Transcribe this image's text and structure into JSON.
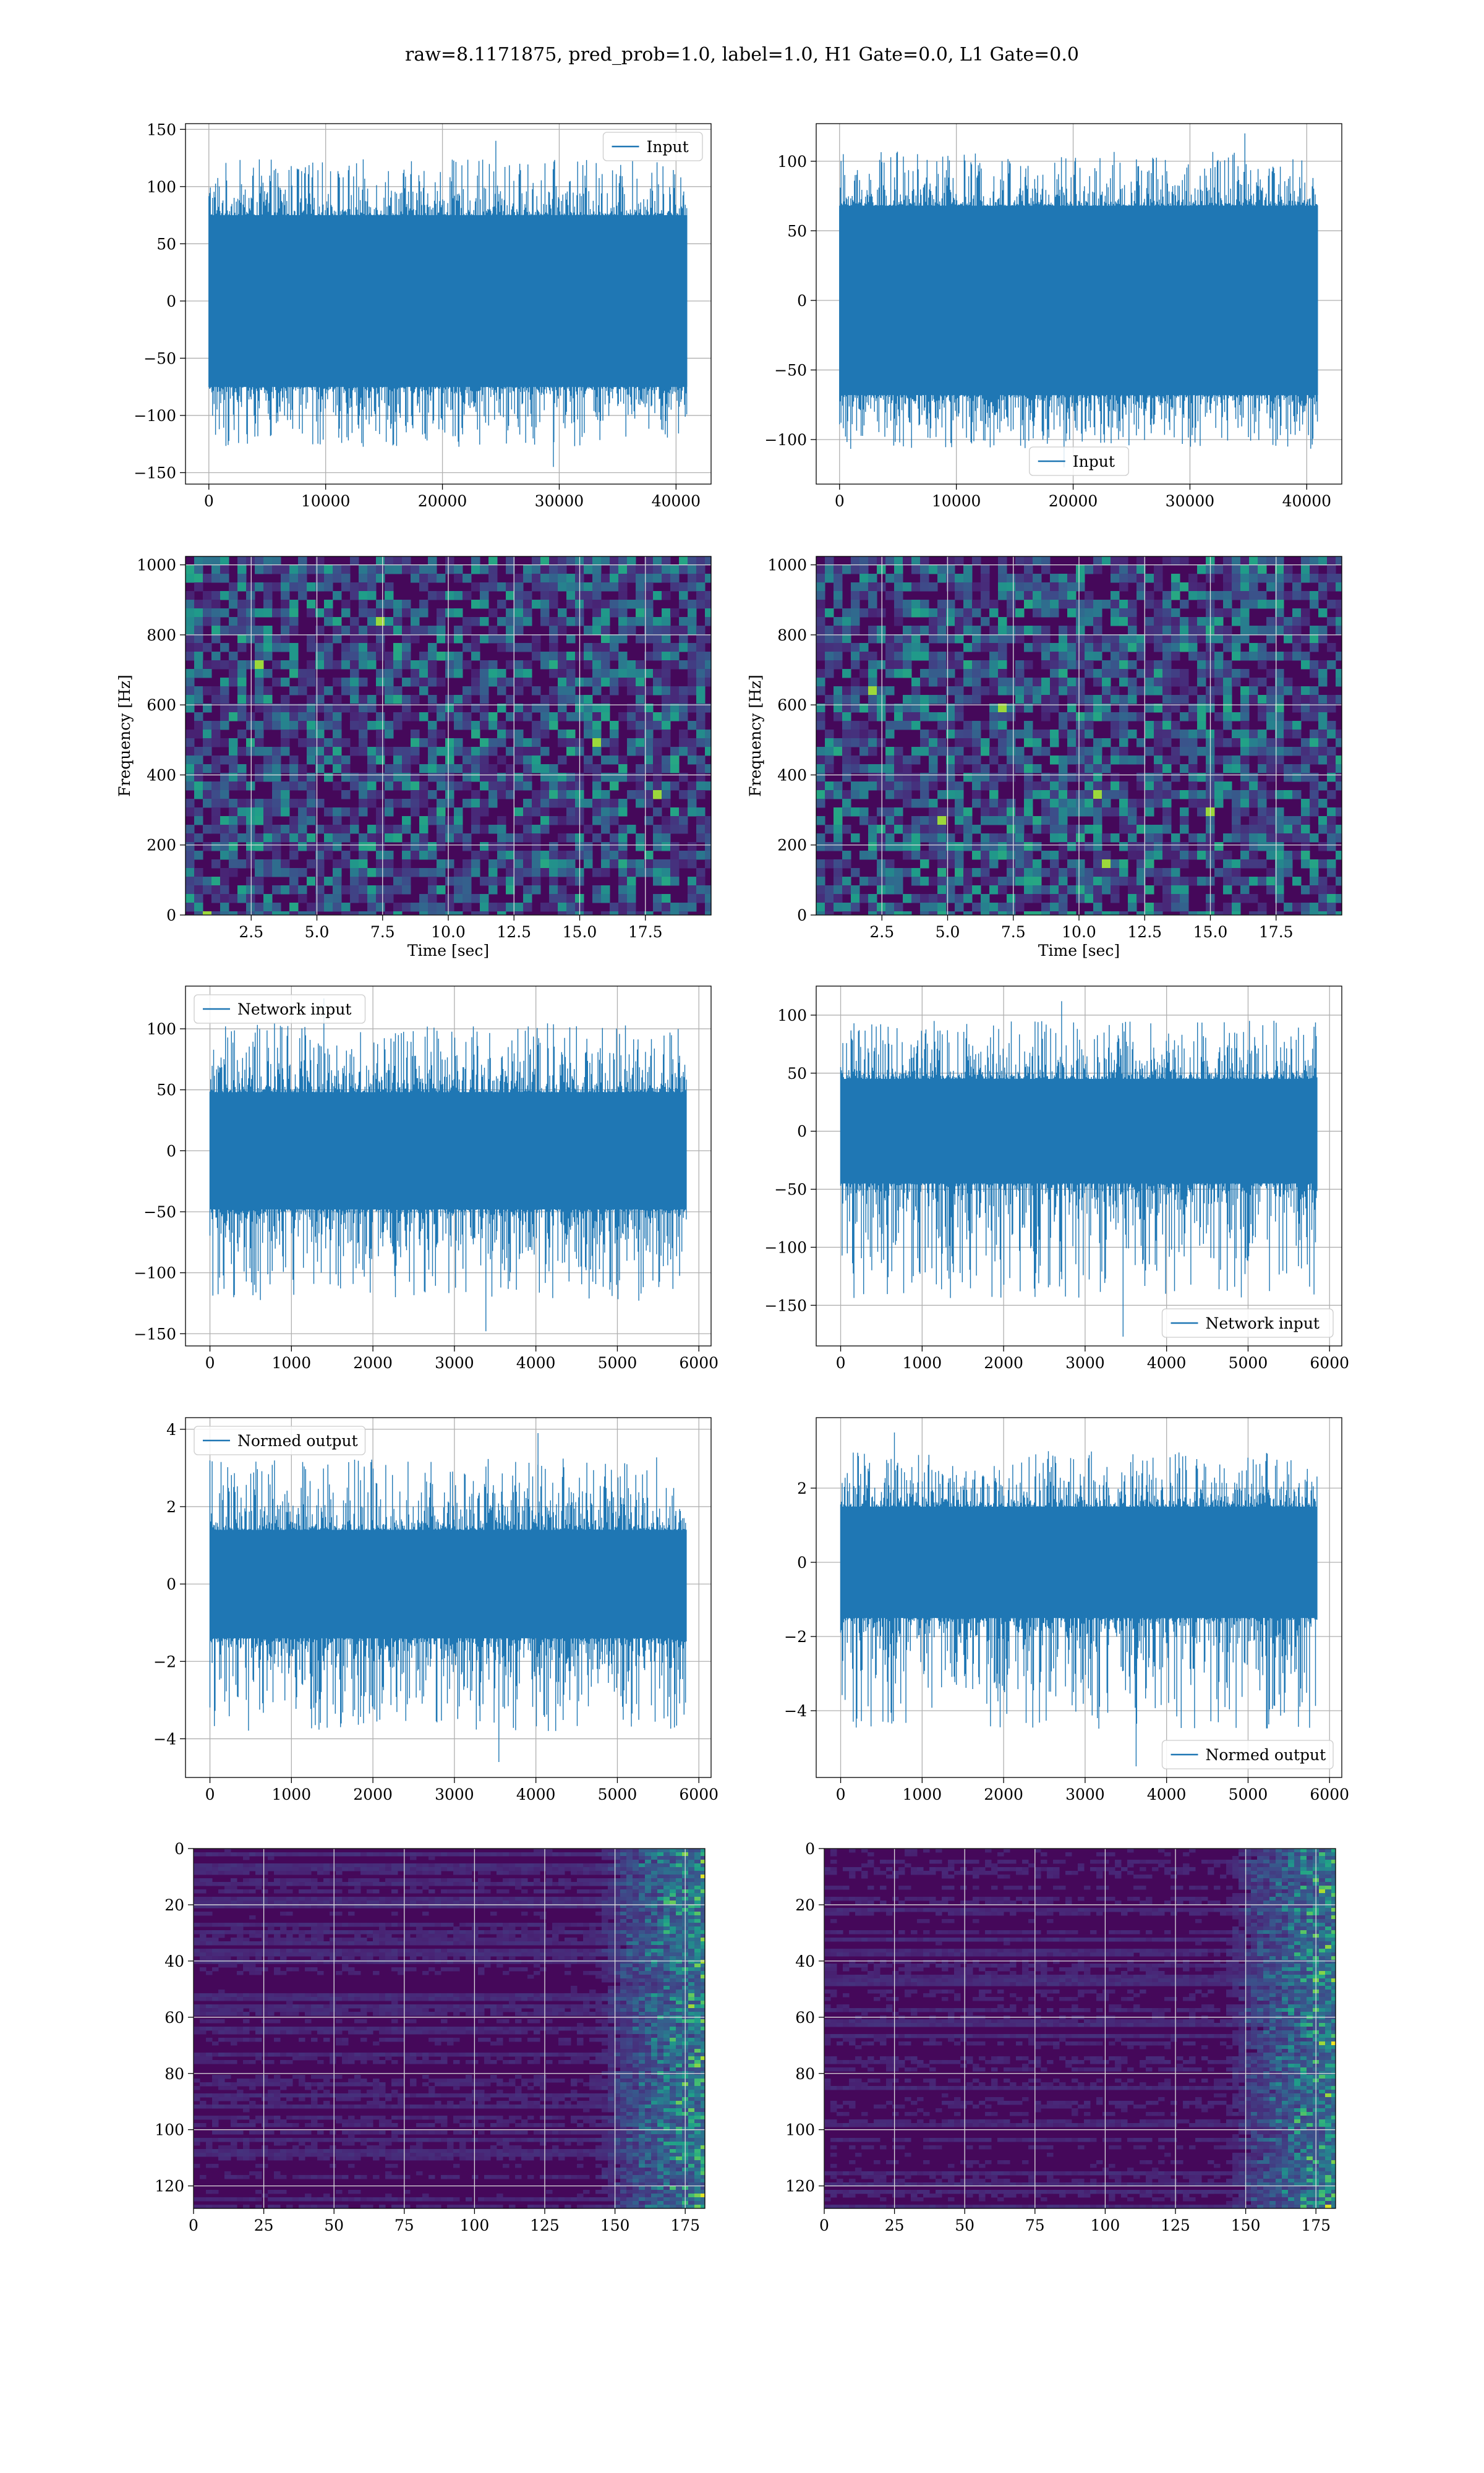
{
  "suptitle": "raw=8.1171875, pred_prob=1.0, label=1.0, H1 Gate=0.0, L1 Gate=0.0",
  "colors": {
    "line": "#1f77b4",
    "grid": "#b0b0b0",
    "viridis_low": "#440154",
    "viridis_mid": "#21918c",
    "viridis_high": "#fde725"
  },
  "chart_data": [
    {
      "id": "r1c1",
      "type": "line",
      "legend": "Input",
      "legend_loc": "upper right",
      "xlim": [
        -2000,
        43000
      ],
      "ylim": [
        -160,
        155
      ],
      "xticks": [
        0,
        10000,
        20000,
        30000,
        40000
      ],
      "xticklabels": [
        "0",
        "10000",
        "20000",
        "30000",
        "40000"
      ],
      "yticks": [
        -150,
        -100,
        -50,
        0,
        50,
        100,
        150
      ],
      "yticklabels": [
        "−150",
        "−100",
        "−50",
        "0",
        "50",
        "100",
        "150"
      ],
      "n": 40960,
      "core": 75,
      "peak_max": 140,
      "peak_min": -145,
      "grid": true
    },
    {
      "id": "r1c2",
      "type": "line",
      "legend": "Input",
      "legend_loc": "lower center",
      "xlim": [
        -2000,
        43000
      ],
      "ylim": [
        -132,
        127
      ],
      "xticks": [
        0,
        10000,
        20000,
        30000,
        40000
      ],
      "xticklabels": [
        "0",
        "10000",
        "20000",
        "30000",
        "40000"
      ],
      "yticks": [
        -100,
        -50,
        0,
        50,
        100
      ],
      "yticklabels": [
        "−100",
        "−50",
        "0",
        "50",
        "100"
      ],
      "n": 40960,
      "core": 68,
      "peak_max": 120,
      "peak_min": -120,
      "grid": true
    },
    {
      "id": "r2c1",
      "type": "heatmap",
      "xlabel": "Time [sec]",
      "ylabel": "Frequency [Hz]",
      "xlim": [
        0,
        20
      ],
      "ylim": [
        0,
        1024
      ],
      "xticks": [
        2.5,
        5,
        7.5,
        10,
        12.5,
        15,
        17.5
      ],
      "xticklabels": [
        "2.5",
        "5.0",
        "7.5",
        "10.0",
        "12.5",
        "15.0",
        "17.5"
      ],
      "yticks": [
        0,
        200,
        400,
        600,
        800,
        1000
      ],
      "yticklabels": [
        "0",
        "200",
        "400",
        "600",
        "800",
        "1000"
      ],
      "grid": true
    },
    {
      "id": "r2c2",
      "type": "heatmap",
      "xlabel": "Time [sec]",
      "ylabel": "Frequency [Hz]",
      "xlim": [
        0,
        20
      ],
      "ylim": [
        0,
        1024
      ],
      "xticks": [
        2.5,
        5,
        7.5,
        10,
        12.5,
        15,
        17.5
      ],
      "xticklabels": [
        "2.5",
        "5.0",
        "7.5",
        "10.0",
        "12.5",
        "15.0",
        "17.5"
      ],
      "yticks": [
        0,
        200,
        400,
        600,
        800,
        1000
      ],
      "yticklabels": [
        "0",
        "200",
        "400",
        "600",
        "800",
        "1000"
      ],
      "grid": true
    },
    {
      "id": "r3c1",
      "type": "line",
      "legend": "Network input",
      "legend_loc": "upper left",
      "xlim": [
        -300,
        6150
      ],
      "ylim": [
        -160,
        135
      ],
      "xticks": [
        0,
        1000,
        2000,
        3000,
        4000,
        5000,
        6000
      ],
      "xticklabels": [
        "0",
        "1000",
        "2000",
        "3000",
        "4000",
        "5000",
        "6000"
      ],
      "yticks": [
        -150,
        -100,
        -50,
        0,
        50,
        100
      ],
      "yticklabels": [
        "−150",
        "−100",
        "−50",
        "0",
        "50",
        "100"
      ],
      "n": 5850,
      "core": 48,
      "peak_max": 125,
      "peak_min": -148,
      "grid": true
    },
    {
      "id": "r3c2",
      "type": "line",
      "legend": "Network input",
      "legend_loc": "lower right",
      "xlim": [
        -300,
        6150
      ],
      "ylim": [
        -185,
        125
      ],
      "xticks": [
        0,
        1000,
        2000,
        3000,
        4000,
        5000,
        6000
      ],
      "xticklabels": [
        "0",
        "1000",
        "2000",
        "3000",
        "4000",
        "5000",
        "6000"
      ],
      "yticks": [
        -150,
        -100,
        -50,
        0,
        50,
        100
      ],
      "yticklabels": [
        "−150",
        "−100",
        "−50",
        "0",
        "50",
        "100"
      ],
      "n": 5850,
      "core": 45,
      "peak_max": 112,
      "peak_min": -177,
      "grid": true
    },
    {
      "id": "r4c1",
      "type": "line",
      "legend": "Normed output",
      "legend_loc": "upper left",
      "xlim": [
        -300,
        6150
      ],
      "ylim": [
        -5,
        4.3
      ],
      "xticks": [
        0,
        1000,
        2000,
        3000,
        4000,
        5000,
        6000
      ],
      "xticklabels": [
        "0",
        "1000",
        "2000",
        "3000",
        "4000",
        "5000",
        "6000"
      ],
      "yticks": [
        -4,
        -2,
        0,
        2,
        4
      ],
      "yticklabels": [
        "−4",
        "−2",
        "0",
        "2",
        "4"
      ],
      "n": 5850,
      "core": 1.4,
      "peak_max": 3.9,
      "peak_min": -4.6,
      "grid": true
    },
    {
      "id": "r4c2",
      "type": "line",
      "legend": "Normed output",
      "legend_loc": "lower right",
      "xlim": [
        -300,
        6150
      ],
      "ylim": [
        -5.8,
        3.9
      ],
      "xticks": [
        0,
        1000,
        2000,
        3000,
        4000,
        5000,
        6000
      ],
      "xticklabels": [
        "0",
        "1000",
        "2000",
        "3000",
        "4000",
        "5000",
        "6000"
      ],
      "yticks": [
        -4,
        -2,
        0,
        2
      ],
      "yticklabels": [
        "−4",
        "−2",
        "0",
        "2"
      ],
      "n": 5850,
      "core": 1.5,
      "peak_max": 3.5,
      "peak_min": -5.5,
      "grid": true
    },
    {
      "id": "r5c1",
      "type": "heatmap",
      "xlim": [
        0,
        182
      ],
      "ylim": [
        128,
        0
      ],
      "xticks": [
        0,
        25,
        50,
        75,
        100,
        125,
        150,
        175
      ],
      "xticklabels": [
        "0",
        "25",
        "50",
        "75",
        "100",
        "125",
        "150",
        "175"
      ],
      "yticks": [
        0,
        20,
        40,
        60,
        80,
        100,
        120
      ],
      "yticklabels": [
        "0",
        "20",
        "40",
        "60",
        "80",
        "100",
        "120"
      ],
      "grid": true
    },
    {
      "id": "r5c2",
      "type": "heatmap",
      "xlim": [
        0,
        182
      ],
      "ylim": [
        128,
        0
      ],
      "xticks": [
        0,
        25,
        50,
        75,
        100,
        125,
        150,
        175
      ],
      "xticklabels": [
        "0",
        "25",
        "50",
        "75",
        "100",
        "125",
        "150",
        "175"
      ],
      "yticks": [
        0,
        20,
        40,
        60,
        80,
        100,
        120
      ],
      "yticklabels": [
        "0",
        "20",
        "40",
        "60",
        "80",
        "100",
        "120"
      ],
      "grid": true
    }
  ]
}
